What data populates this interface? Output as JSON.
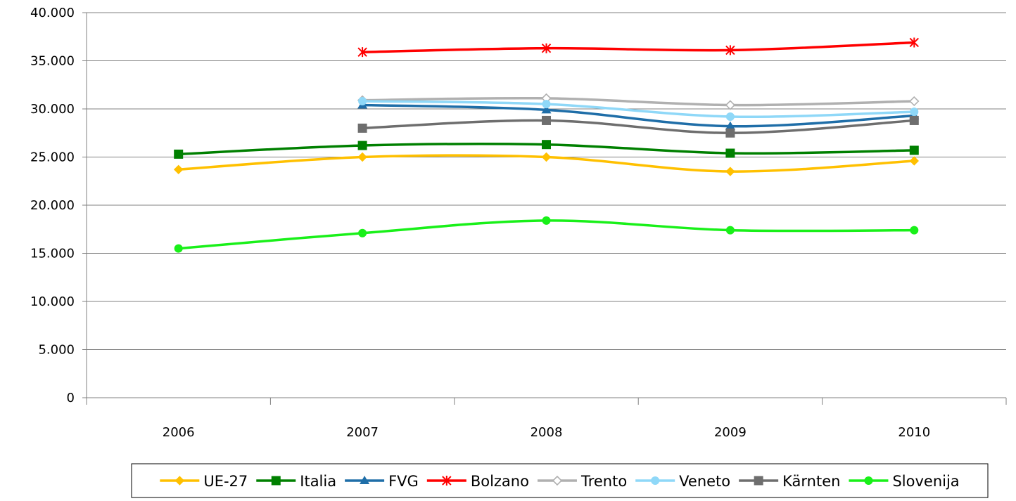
{
  "chart_data": {
    "type": "line",
    "categories": [
      "2006",
      "2007",
      "2008",
      "2009",
      "2010"
    ],
    "ylim": [
      0,
      40000
    ],
    "y_ticks": [
      "0",
      "5.000",
      "10.000",
      "15.000",
      "20.000",
      "25.000",
      "30.000",
      "35.000",
      "40.000"
    ],
    "y_tick_values": [
      0,
      5000,
      10000,
      15000,
      20000,
      25000,
      30000,
      35000,
      40000
    ],
    "grid": "horizontal",
    "legend_position": "bottom",
    "series": [
      {
        "name": "UE-27",
        "color": "#FFC000",
        "marker": "diamond",
        "values": [
          23700,
          25000,
          25000,
          23500,
          24600
        ]
      },
      {
        "name": "Italia",
        "color": "#008000",
        "marker": "square",
        "values": [
          25300,
          26200,
          26300,
          25400,
          25700
        ]
      },
      {
        "name": "FVG",
        "color": "#1F6EA8",
        "marker": "triangle",
        "values": [
          null,
          30400,
          29900,
          28200,
          29300
        ]
      },
      {
        "name": "Bolzano",
        "color": "#FF0000",
        "marker": "asterisk",
        "values": [
          null,
          35900,
          36300,
          36100,
          36900
        ]
      },
      {
        "name": "Trento",
        "color": "#B0B0B0",
        "marker": "diamond-open",
        "values": [
          null,
          30900,
          31100,
          30400,
          30800
        ]
      },
      {
        "name": "Veneto",
        "color": "#8FD8F8",
        "marker": "circle",
        "values": [
          null,
          30800,
          30500,
          29200,
          29700
        ]
      },
      {
        "name": "Kärnten",
        "color": "#6E6E6E",
        "marker": "square",
        "values": [
          null,
          28000,
          28800,
          27500,
          28800
        ]
      },
      {
        "name": "Slovenija",
        "color": "#19F019",
        "marker": "circle",
        "values": [
          15500,
          17100,
          18400,
          17400,
          17400
        ]
      }
    ]
  }
}
